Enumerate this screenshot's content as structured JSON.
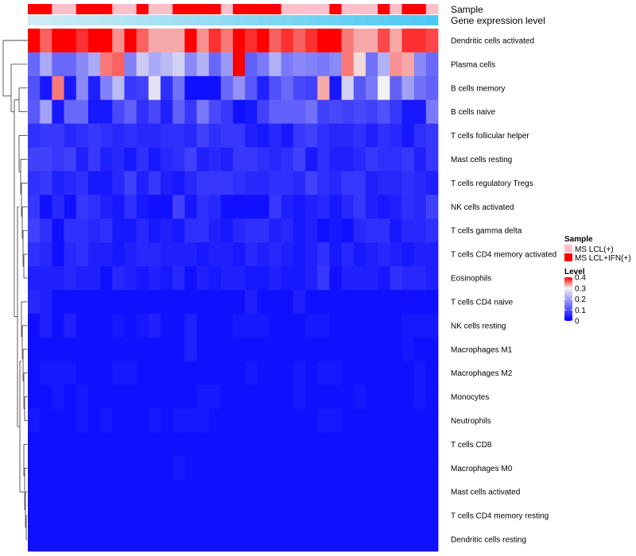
{
  "chart_data": {
    "type": "heatmap",
    "title": "",
    "annotation_tracks": [
      {
        "name": "Sample",
        "values": [
          "MS LCL+IFN(+)",
          "MS LCL+IFN(+)",
          "MS LCL(+)",
          "MS LCL(+)",
          "MS LCL+IFN(+)",
          "MS LCL+IFN(+)",
          "MS LCL+IFN(+)",
          "MS LCL(+)",
          "MS LCL(+)",
          "MS LCL+IFN(+)",
          "MS LCL(+)",
          "MS LCL(+)",
          "MS LCL+IFN(+)",
          "MS LCL+IFN(+)",
          "MS LCL+IFN(+)",
          "MS LCL+IFN(+)",
          "MS LCL(+)",
          "MS LCL+IFN(+)",
          "MS LCL+IFN(+)",
          "MS LCL+IFN(+)",
          "MS LCL+IFN(+)",
          "MS LCL(+)",
          "MS LCL(+)",
          "MS LCL(+)",
          "MS LCL(+)",
          "MS LCL+IFN(+)",
          "MS LCL(+)",
          "MS LCL(+)",
          "MS LCL(+)",
          "MS LCL+IFN(+)",
          "MS LCL(+)",
          "MS LCL+IFN(+)",
          "MS LCL+IFN(+)",
          "MS LCL(+)"
        ]
      },
      {
        "name": "Gene expression level",
        "values": [
          0.0,
          0.03,
          0.06,
          0.09,
          0.12,
          0.15,
          0.18,
          0.21,
          0.24,
          0.27,
          0.3,
          0.33,
          0.36,
          0.39,
          0.42,
          0.45,
          0.48,
          0.52,
          0.55,
          0.58,
          0.61,
          0.64,
          0.67,
          0.7,
          0.73,
          0.76,
          0.79,
          0.82,
          0.85,
          0.88,
          0.91,
          0.94,
          0.97,
          1.0
        ]
      }
    ],
    "rows": [
      "Dendritic cells activated",
      "Plasma cells",
      "B cells memory",
      "B cells naive",
      "T cells follicular helper",
      "Mast cells resting",
      "T cells regulatory  Tregs",
      "NK cells activated",
      "T cells gamma delta",
      "T cells CD4 memory activated",
      "Eosinophils",
      "T cells CD4 naive",
      "NK cells resting",
      "Macrophages M1",
      "Macrophages M2",
      "Monocytes",
      "Neutrophils",
      "T cells CD8",
      "Macrophages M0",
      "Mast cells activated",
      "T cells CD4 memory resting",
      "Dendritic cells resting"
    ],
    "values": [
      [
        0.4,
        0.36,
        0.4,
        0.4,
        0.38,
        0.4,
        0.4,
        0.34,
        0.4,
        0.36,
        0.33,
        0.33,
        0.33,
        0.4,
        0.34,
        0.38,
        0.35,
        0.4,
        0.38,
        0.4,
        0.36,
        0.38,
        0.36,
        0.38,
        0.4,
        0.4,
        0.35,
        0.33,
        0.33,
        0.37,
        0.33,
        0.38,
        0.38,
        0.37
      ],
      [
        0.13,
        0.21,
        0.13,
        0.13,
        0.17,
        0.21,
        0.35,
        0.36,
        0.16,
        0.25,
        0.21,
        0.23,
        0.26,
        0.17,
        0.22,
        0.13,
        0.19,
        0.41,
        0.12,
        0.15,
        0.22,
        0.15,
        0.17,
        0.16,
        0.15,
        0.17,
        0.35,
        0.31,
        0.14,
        0.22,
        0.34,
        0.33,
        0.17,
        0.13
      ],
      [
        0.1,
        0.03,
        0.35,
        0.03,
        0.17,
        0.04,
        0.16,
        0.23,
        0.07,
        0.08,
        0.28,
        0.06,
        0.14,
        0.02,
        0.02,
        0.02,
        0.13,
        0.18,
        0.11,
        0.04,
        0.1,
        0.13,
        0.09,
        0.08,
        0.33,
        0.03,
        0.26,
        0.11,
        0.15,
        0.3,
        0.12,
        0.2,
        0.14,
        0.12
      ],
      [
        0.11,
        0.2,
        0.03,
        0.13,
        0.13,
        0.03,
        0.03,
        0.09,
        0.12,
        0.06,
        0.09,
        0.04,
        0.12,
        0.07,
        0.15,
        0.09,
        0.07,
        0.02,
        0.03,
        0.08,
        0.12,
        0.12,
        0.12,
        0.14,
        0.08,
        0.09,
        0.08,
        0.09,
        0.08,
        0.1,
        0.07,
        0.03,
        0.03,
        0.15
      ],
      [
        0.06,
        0.07,
        0.07,
        0.05,
        0.06,
        0.07,
        0.06,
        0.05,
        0.06,
        0.05,
        0.05,
        0.06,
        0.06,
        0.05,
        0.08,
        0.06,
        0.07,
        0.07,
        0.04,
        0.03,
        0.05,
        0.03,
        0.07,
        0.08,
        0.06,
        0.05,
        0.05,
        0.06,
        0.04,
        0.06,
        0.05,
        0.03,
        0.06,
        0.07
      ],
      [
        0.08,
        0.08,
        0.07,
        0.08,
        0.04,
        0.07,
        0.04,
        0.05,
        0.03,
        0.06,
        0.03,
        0.05,
        0.06,
        0.08,
        0.04,
        0.05,
        0.04,
        0.07,
        0.07,
        0.06,
        0.05,
        0.06,
        0.08,
        0.03,
        0.06,
        0.04,
        0.04,
        0.05,
        0.07,
        0.06,
        0.06,
        0.07,
        0.04,
        0.07
      ],
      [
        0.06,
        0.07,
        0.04,
        0.05,
        0.06,
        0.03,
        0.03,
        0.05,
        0.08,
        0.04,
        0.07,
        0.04,
        0.03,
        0.05,
        0.07,
        0.07,
        0.07,
        0.06,
        0.05,
        0.05,
        0.06,
        0.06,
        0.05,
        0.08,
        0.06,
        0.05,
        0.07,
        0.07,
        0.04,
        0.05,
        0.05,
        0.06,
        0.05,
        0.04
      ],
      [
        0.07,
        0.02,
        0.05,
        0.02,
        0.07,
        0.06,
        0.04,
        0.03,
        0.06,
        0.03,
        0.02,
        0.02,
        0.08,
        0.03,
        0.06,
        0.05,
        0.02,
        0.02,
        0.02,
        0.02,
        0.07,
        0.04,
        0.03,
        0.04,
        0.05,
        0.03,
        0.05,
        0.07,
        0.04,
        0.03,
        0.04,
        0.06,
        0.05,
        0.08
      ],
      [
        0.08,
        0.06,
        0.02,
        0.06,
        0.06,
        0.05,
        0.06,
        0.03,
        0.03,
        0.05,
        0.03,
        0.04,
        0.03,
        0.06,
        0.06,
        0.04,
        0.03,
        0.05,
        0.06,
        0.06,
        0.04,
        0.05,
        0.03,
        0.04,
        0.02,
        0.03,
        0.02,
        0.05,
        0.06,
        0.06,
        0.03,
        0.05,
        0.05,
        0.06
      ],
      [
        0.06,
        0.05,
        0.02,
        0.05,
        0.06,
        0.04,
        0.04,
        0.03,
        0.04,
        0.05,
        0.05,
        0.04,
        0.04,
        0.04,
        0.03,
        0.04,
        0.04,
        0.03,
        0.05,
        0.04,
        0.05,
        0.04,
        0.03,
        0.04,
        0.06,
        0.03,
        0.05,
        0.03,
        0.04,
        0.05,
        0.04,
        0.03,
        0.04,
        0.04
      ],
      [
        0.04,
        0.04,
        0.04,
        0.05,
        0.04,
        0.04,
        0.02,
        0.05,
        0.04,
        0.03,
        0.04,
        0.03,
        0.05,
        0.02,
        0.04,
        0.03,
        0.04,
        0.04,
        0.03,
        0.03,
        0.04,
        0.03,
        0.03,
        0.04,
        0.07,
        0.02,
        0.04,
        0.04,
        0.04,
        0.03,
        0.06,
        0.05,
        0.05,
        0.04
      ],
      [
        0.05,
        0.04,
        0.02,
        0.02,
        0.02,
        0.02,
        0.02,
        0.02,
        0.02,
        0.02,
        0.02,
        0.02,
        0.02,
        0.02,
        0.02,
        0.02,
        0.02,
        0.02,
        0.04,
        0.02,
        0.02,
        0.02,
        0.04,
        0.02,
        0.02,
        0.02,
        0.02,
        0.02,
        0.02,
        0.02,
        0.02,
        0.02,
        0.02,
        0.02
      ],
      [
        0.02,
        0.04,
        0.02,
        0.04,
        0.02,
        0.02,
        0.02,
        0.03,
        0.02,
        0.03,
        0.04,
        0.02,
        0.02,
        0.04,
        0.02,
        0.02,
        0.02,
        0.03,
        0.03,
        0.03,
        0.02,
        0.02,
        0.02,
        0.03,
        0.03,
        0.02,
        0.02,
        0.02,
        0.02,
        0.02,
        0.02,
        0.03,
        0.03,
        0.03
      ],
      [
        0.02,
        0.02,
        0.02,
        0.02,
        0.02,
        0.02,
        0.02,
        0.02,
        0.02,
        0.02,
        0.02,
        0.02,
        0.02,
        0.04,
        0.02,
        0.02,
        0.02,
        0.02,
        0.02,
        0.02,
        0.02,
        0.02,
        0.02,
        0.02,
        0.02,
        0.02,
        0.02,
        0.02,
        0.02,
        0.02,
        0.02,
        0.03,
        0.02,
        0.02
      ],
      [
        0.02,
        0.03,
        0.03,
        0.03,
        0.02,
        0.02,
        0.02,
        0.03,
        0.03,
        0.02,
        0.02,
        0.02,
        0.02,
        0.02,
        0.02,
        0.02,
        0.02,
        0.02,
        0.03,
        0.02,
        0.02,
        0.02,
        0.03,
        0.02,
        0.03,
        0.03,
        0.02,
        0.02,
        0.02,
        0.02,
        0.02,
        0.02,
        0.03,
        0.02
      ],
      [
        0.02,
        0.02,
        0.03,
        0.02,
        0.03,
        0.02,
        0.02,
        0.02,
        0.02,
        0.02,
        0.02,
        0.02,
        0.02,
        0.02,
        0.03,
        0.03,
        0.02,
        0.02,
        0.02,
        0.02,
        0.02,
        0.02,
        0.03,
        0.02,
        0.02,
        0.02,
        0.02,
        0.03,
        0.02,
        0.02,
        0.02,
        0.02,
        0.03,
        0.02
      ],
      [
        0.03,
        0.02,
        0.02,
        0.02,
        0.03,
        0.02,
        0.03,
        0.02,
        0.02,
        0.02,
        0.03,
        0.02,
        0.03,
        0.03,
        0.03,
        0.02,
        0.02,
        0.02,
        0.02,
        0.02,
        0.02,
        0.02,
        0.02,
        0.02,
        0.03,
        0.03,
        0.02,
        0.02,
        0.02,
        0.02,
        0.02,
        0.02,
        0.02,
        0.02
      ],
      [
        0.02,
        0.02,
        0.02,
        0.02,
        0.02,
        0.02,
        0.02,
        0.02,
        0.02,
        0.02,
        0.02,
        0.02,
        0.02,
        0.02,
        0.02,
        0.02,
        0.02,
        0.02,
        0.02,
        0.02,
        0.02,
        0.02,
        0.02,
        0.02,
        0.02,
        0.02,
        0.02,
        0.02,
        0.02,
        0.02,
        0.02,
        0.02,
        0.02,
        0.02
      ],
      [
        0.02,
        0.02,
        0.02,
        0.02,
        0.02,
        0.02,
        0.02,
        0.02,
        0.02,
        0.02,
        0.02,
        0.02,
        0.03,
        0.02,
        0.02,
        0.02,
        0.02,
        0.02,
        0.02,
        0.02,
        0.02,
        0.02,
        0.02,
        0.02,
        0.02,
        0.02,
        0.02,
        0.02,
        0.02,
        0.02,
        0.02,
        0.02,
        0.02,
        0.02
      ],
      [
        0.02,
        0.02,
        0.02,
        0.02,
        0.02,
        0.02,
        0.02,
        0.02,
        0.02,
        0.02,
        0.02,
        0.02,
        0.02,
        0.02,
        0.02,
        0.02,
        0.02,
        0.02,
        0.02,
        0.02,
        0.02,
        0.02,
        0.02,
        0.02,
        0.02,
        0.02,
        0.02,
        0.02,
        0.02,
        0.02,
        0.02,
        0.02,
        0.02,
        0.02
      ],
      [
        0.02,
        0.02,
        0.02,
        0.02,
        0.02,
        0.02,
        0.02,
        0.02,
        0.02,
        0.02,
        0.02,
        0.02,
        0.02,
        0.02,
        0.02,
        0.02,
        0.02,
        0.02,
        0.02,
        0.02,
        0.02,
        0.02,
        0.02,
        0.02,
        0.02,
        0.02,
        0.02,
        0.02,
        0.02,
        0.02,
        0.02,
        0.02,
        0.02,
        0.02
      ],
      [
        0.02,
        0.02,
        0.02,
        0.02,
        0.02,
        0.02,
        0.02,
        0.02,
        0.02,
        0.02,
        0.02,
        0.02,
        0.02,
        0.02,
        0.02,
        0.02,
        0.02,
        0.02,
        0.02,
        0.02,
        0.02,
        0.02,
        0.02,
        0.02,
        0.02,
        0.02,
        0.02,
        0.02,
        0.02,
        0.02,
        0.02,
        0.02,
        0.02,
        0.02
      ]
    ],
    "color_scale": {
      "min": 0,
      "mid": 0.3,
      "max": 0.4,
      "low_color": "#0000ff",
      "mid_color": "#f2f2f2",
      "high_color": "#ff0000"
    },
    "legends": [
      {
        "title": "Sample",
        "entries": [
          {
            "label": "MS LCL(+)",
            "color": "#fcc0cb"
          },
          {
            "label": "MS LCL+IFN(+)",
            "color": "#fe0000"
          }
        ]
      },
      {
        "title": "Level",
        "ticks": [
          "0.4",
          "0.3",
          "0.2",
          "0.1",
          "0"
        ]
      }
    ],
    "expression_track_colors": {
      "low": "#cfecf5",
      "high": "#4dc8f2"
    }
  }
}
